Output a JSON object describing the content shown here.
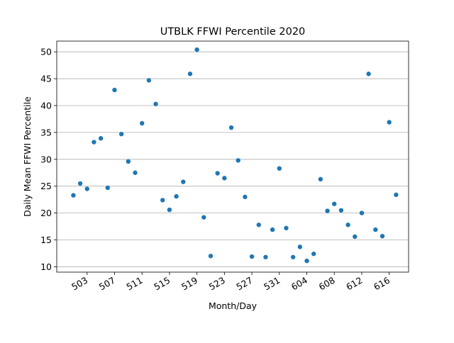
{
  "chart_data": {
    "type": "scatter",
    "title": "UTBLK FFWI Percentile 2020",
    "xlabel": "Month/Day",
    "ylabel": "Daily Mean FFWI Percentile",
    "x_ticks": [
      "503",
      "507",
      "511",
      "515",
      "519",
      "523",
      "527",
      "531",
      "604",
      "608",
      "612",
      "616"
    ],
    "y_ticks": [
      "10",
      "15",
      "20",
      "25",
      "30",
      "35",
      "40",
      "45",
      "50"
    ],
    "ylim": [
      9,
      52
    ],
    "grid": "horizontal",
    "color": "#1f77b4",
    "series": [
      {
        "x": [
          "2020-05-01",
          "2020-05-02",
          "2020-05-03",
          "2020-05-04",
          "2020-05-05",
          "2020-05-06",
          "2020-05-07",
          "2020-05-08",
          "2020-05-09",
          "2020-05-10",
          "2020-05-11",
          "2020-05-12",
          "2020-05-13",
          "2020-05-14",
          "2020-05-15",
          "2020-05-16",
          "2020-05-17",
          "2020-05-18",
          "2020-05-19",
          "2020-05-20",
          "2020-05-21",
          "2020-05-22",
          "2020-05-23",
          "2020-05-24",
          "2020-05-25",
          "2020-05-26",
          "2020-05-27",
          "2020-05-28",
          "2020-05-29",
          "2020-05-30",
          "2020-05-31",
          "2020-06-01",
          "2020-06-02",
          "2020-06-03",
          "2020-06-04",
          "2020-06-05",
          "2020-06-06",
          "2020-06-07",
          "2020-06-08",
          "2020-06-09",
          "2020-06-10",
          "2020-06-11",
          "2020-06-12",
          "2020-06-13",
          "2020-06-14",
          "2020-06-15",
          "2020-06-16",
          "2020-06-17"
        ],
        "y": [
          23.3,
          25.5,
          24.5,
          33.2,
          33.9,
          24.7,
          42.9,
          34.7,
          29.6,
          27.5,
          36.7,
          44.7,
          40.3,
          22.4,
          20.6,
          23.1,
          25.8,
          45.9,
          50.4,
          19.2,
          12.0,
          27.4,
          26.5,
          35.9,
          29.8,
          23.0,
          11.9,
          17.8,
          11.8,
          16.9,
          28.3,
          17.2,
          11.8,
          13.7,
          11.1,
          12.4,
          26.3,
          20.4,
          21.7,
          20.5,
          17.8,
          15.6,
          20.0,
          45.9,
          16.9,
          15.7,
          36.9,
          23.4
        ]
      }
    ]
  }
}
